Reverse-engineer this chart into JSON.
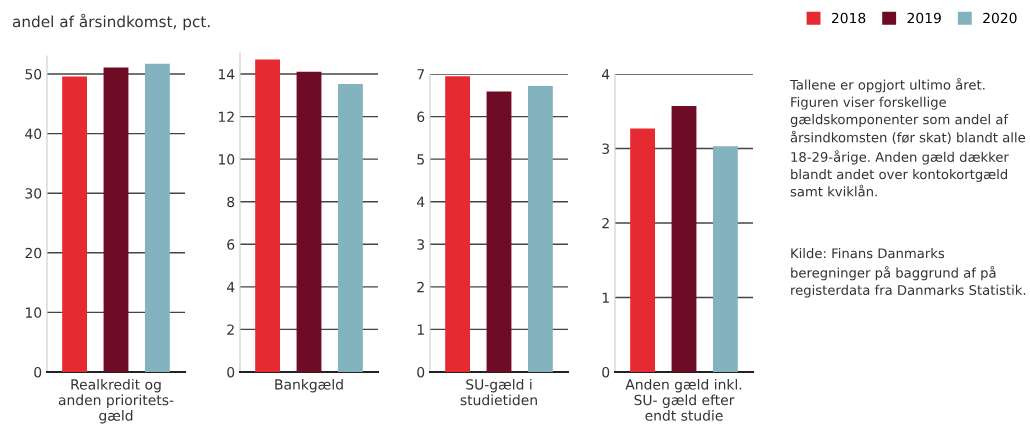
{
  "chart_data": [
    {
      "type": "bar",
      "ylabel": "andel af årsindkomst, pct.",
      "categories": [
        "Realkredit og\nanden prioritets-\ngæld"
      ],
      "ylim": [
        0,
        53
      ],
      "yticks": [
        0,
        10,
        20,
        30,
        40,
        50
      ],
      "grid": "y",
      "series": [
        {
          "color": "#e52a32",
          "values": [
            49.6
          ]
        },
        {
          "color": "#6f0b25",
          "values": [
            51.1
          ]
        },
        {
          "color": "#82b3be",
          "values": [
            51.7
          ]
        }
      ]
    },
    {
      "type": "bar",
      "categories": [
        "Bankgæld"
      ],
      "ylim": [
        0,
        15
      ],
      "yticks": [
        0,
        2,
        4,
        6,
        8,
        10,
        12,
        14
      ],
      "grid": "y",
      "series": [
        {
          "color": "#e52a32",
          "values": [
            14.68
          ]
        },
        {
          "color": "#6f0b25",
          "values": [
            14.1
          ]
        },
        {
          "color": "#82b3be",
          "values": [
            13.53
          ]
        }
      ]
    },
    {
      "type": "bar",
      "categories": [
        "SU-gæld i\nstudietiden"
      ],
      "ylim": [
        0,
        7
      ],
      "yticks": [
        0,
        1,
        2,
        3,
        4,
        5,
        6,
        7
      ],
      "grid": "y",
      "series": [
        {
          "color": "#e52a32",
          "values": [
            6.95
          ]
        },
        {
          "color": "#6f0b25",
          "values": [
            6.59
          ]
        },
        {
          "color": "#82b3be",
          "values": [
            6.72
          ]
        }
      ]
    },
    {
      "type": "bar",
      "categories": [
        "Anden gæld inkl.\nSU- gæld efter\nendt studie"
      ],
      "ylim": [
        0,
        4
      ],
      "yticks": [
        0,
        1,
        2,
        3,
        4
      ],
      "grid": "y",
      "legend": "top right",
      "series": [
        {
          "name": "2018",
          "color": "#e52a32",
          "values": [
            3.27
          ]
        },
        {
          "name": "2019",
          "color": "#6f0b25",
          "values": [
            3.57
          ]
        },
        {
          "name": "2020",
          "color": "#82b3be",
          "values": [
            3.03
          ]
        }
      ],
      "annotations": [
        "Tallene er opgjort ultimo året. Figuren viser forskellige gældskomponenter som andel af årsindkomsten (før skat) blandt alle 18-29-årige. Anden gæld dækker blandt andet over kontokortgæld samt kviklån.",
        "Kilde: Finans Danmarks beregninger på baggrund af på registerdata fra Danmarks Statistik."
      ]
    }
  ]
}
